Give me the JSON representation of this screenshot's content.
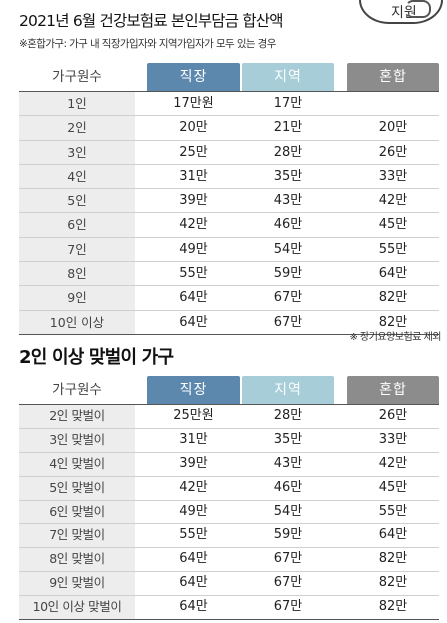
{
  "header": {
    "title": "2021년 6월 건강보험료 본인부담금 합산액",
    "note": "※혼합가구: 가구 내 직장가입자와 지역가입자가 모두 있는 경우",
    "badge_text": "지원"
  },
  "table1": {
    "columns": [
      "가구원수",
      "직장",
      "지역",
      "혼합"
    ],
    "rows": [
      {
        "label": "1인",
        "a": "17만원",
        "b": "17만",
        "c": ""
      },
      {
        "label": "2인",
        "a": "20만",
        "b": "21만",
        "c": "20만"
      },
      {
        "label": "3인",
        "a": "25만",
        "b": "28만",
        "c": "26만"
      },
      {
        "label": "4인",
        "a": "31만",
        "b": "35만",
        "c": "33만"
      },
      {
        "label": "5인",
        "a": "39만",
        "b": "43만",
        "c": "42만"
      },
      {
        "label": "6인",
        "a": "42만",
        "b": "46만",
        "c": "45만"
      },
      {
        "label": "7인",
        "a": "49만",
        "b": "54만",
        "c": "55만"
      },
      {
        "label": "8인",
        "a": "55만",
        "b": "59만",
        "c": "64만"
      },
      {
        "label": "9인",
        "a": "64만",
        "b": "67만",
        "c": "82만"
      },
      {
        "label": "10인 이상",
        "a": "64만",
        "b": "67만",
        "c": "82만"
      }
    ],
    "footnote": "※ 장기요양보험료 제외"
  },
  "section2": {
    "title": "2인 이상 맞벌이 가구"
  },
  "table2": {
    "columns": [
      "가구원수",
      "직장",
      "지역",
      "혼합"
    ],
    "rows": [
      {
        "label": "2인 맞벌이",
        "a": "25만원",
        "b": "28만",
        "c": "26만"
      },
      {
        "label": "3인 맞벌이",
        "a": "31만",
        "b": "35만",
        "c": "33만"
      },
      {
        "label": "4인 맞벌이",
        "a": "39만",
        "b": "43만",
        "c": "42만"
      },
      {
        "label": "5인 맞벌이",
        "a": "42만",
        "b": "46만",
        "c": "45만"
      },
      {
        "label": "6인 맞벌이",
        "a": "49만",
        "b": "54만",
        "c": "55만"
      },
      {
        "label": "7인 맞벌이",
        "a": "55만",
        "b": "59만",
        "c": "64만"
      },
      {
        "label": "8인 맞벌이",
        "a": "64만",
        "b": "67만",
        "c": "82만"
      },
      {
        "label": "9인 맞벌이",
        "a": "64만",
        "b": "67만",
        "c": "82만"
      },
      {
        "label": "10인 이상 맞벌이",
        "a": "64만",
        "b": "67만",
        "c": "82만"
      }
    ]
  },
  "colors": {
    "col_a": "#5d88ad",
    "col_b": "#a6cdd8",
    "col_c": "#8c8c8c",
    "label_bg": "#ededed"
  }
}
